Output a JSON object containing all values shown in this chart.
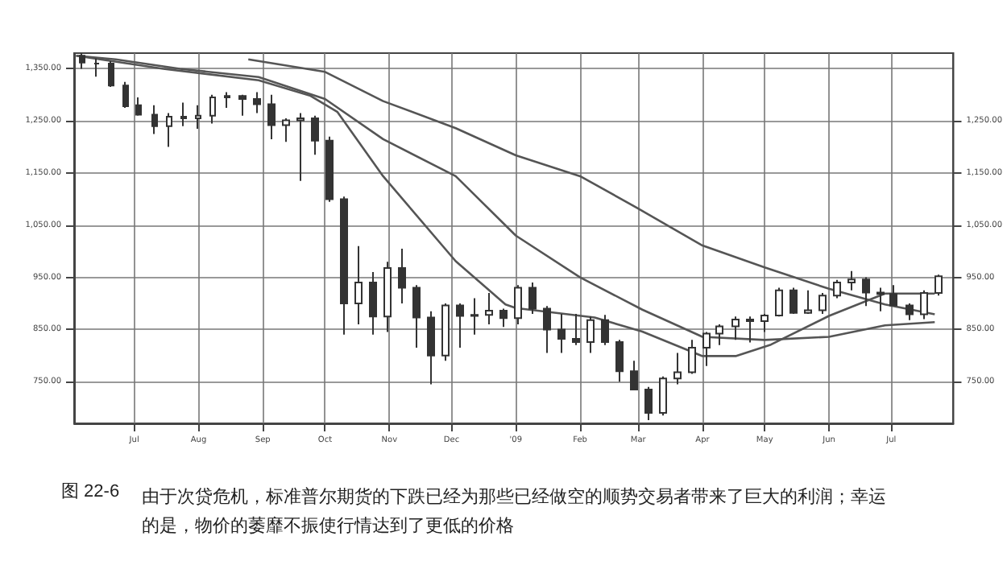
{
  "chart_data": {
    "type": "candlestick",
    "color": "#333333",
    "annotations": [
      "图 22-6",
      "由于次贷危机，标准普尔期货的下跌已经为那些已经做空的顺势交易者带来了巨大的利润；幸运的是，物价的萎靡不振使行情达到了更低的价格"
    ],
    "x": [
      "2008-06-06",
      "2008-06-13",
      "2008-06-20",
      "2008-06-27",
      "2008-07-03",
      "2008-07-11",
      "2008-07-18",
      "2008-07-25",
      "2008-08-01",
      "2008-08-08",
      "2008-08-15",
      "2008-08-22",
      "2008-08-29",
      "2008-09-05",
      "2008-09-12",
      "2008-09-19",
      "2008-09-26",
      "2008-10-03",
      "2008-10-10",
      "2008-10-17",
      "2008-10-24",
      "2008-10-31",
      "2008-11-07",
      "2008-11-14",
      "2008-11-21",
      "2008-11-28",
      "2008-12-05",
      "2008-12-12",
      "2008-12-19",
      "2008-12-26",
      "2009-01-02",
      "2009-01-09",
      "2009-01-16",
      "2009-01-23",
      "2009-01-30",
      "2009-02-06",
      "2009-02-13",
      "2009-02-20",
      "2009-02-27",
      "2009-03-06",
      "2009-03-13",
      "2009-03-20",
      "2009-03-27",
      "2009-04-03",
      "2009-04-09",
      "2009-04-17",
      "2009-04-24",
      "2009-05-01",
      "2009-05-08",
      "2009-05-15",
      "2009-05-22",
      "2009-05-29",
      "2009-06-05",
      "2009-06-12",
      "2009-06-19",
      "2009-06-26",
      "2009-07-02",
      "2009-07-10",
      "2009-07-17",
      "2009-07-24"
    ],
    "ohlc": [
      [
        1375,
        1380,
        1350,
        1362
      ],
      [
        1360,
        1370,
        1335,
        1360
      ],
      [
        1360,
        1365,
        1315,
        1318
      ],
      [
        1318,
        1325,
        1275,
        1278
      ],
      [
        1280,
        1295,
        1260,
        1262
      ],
      [
        1262,
        1280,
        1225,
        1240
      ],
      [
        1240,
        1265,
        1200,
        1258
      ],
      [
        1258,
        1285,
        1240,
        1255
      ],
      [
        1255,
        1280,
        1235,
        1260
      ],
      [
        1260,
        1300,
        1245,
        1295
      ],
      [
        1295,
        1305,
        1275,
        1298
      ],
      [
        1298,
        1300,
        1260,
        1292
      ],
      [
        1292,
        1305,
        1265,
        1282
      ],
      [
        1282,
        1300,
        1215,
        1242
      ],
      [
        1242,
        1255,
        1210,
        1251
      ],
      [
        1251,
        1265,
        1135,
        1255
      ],
      [
        1255,
        1260,
        1185,
        1212
      ],
      [
        1212,
        1220,
        1095,
        1100
      ],
      [
        1100,
        1105,
        840,
        900
      ],
      [
        900,
        1010,
        860,
        940
      ],
      [
        940,
        960,
        840,
        875
      ],
      [
        875,
        980,
        845,
        968
      ],
      [
        968,
        1005,
        900,
        930
      ],
      [
        930,
        935,
        815,
        873
      ],
      [
        873,
        885,
        745,
        800
      ],
      [
        800,
        900,
        790,
        896
      ],
      [
        896,
        900,
        815,
        876
      ],
      [
        876,
        910,
        840,
        878
      ],
      [
        878,
        920,
        860,
        886
      ],
      [
        886,
        890,
        855,
        872
      ],
      [
        872,
        935,
        860,
        930
      ],
      [
        930,
        940,
        880,
        890
      ],
      [
        890,
        895,
        805,
        850
      ],
      [
        850,
        880,
        805,
        832
      ],
      [
        832,
        880,
        820,
        826
      ],
      [
        826,
        875,
        805,
        868
      ],
      [
        868,
        878,
        820,
        826
      ],
      [
        826,
        830,
        750,
        770
      ],
      [
        770,
        790,
        735,
        735
      ],
      [
        735,
        740,
        676,
        690
      ],
      [
        690,
        760,
        685,
        756
      ],
      [
        756,
        805,
        745,
        768
      ],
      [
        768,
        830,
        765,
        815
      ],
      [
        815,
        845,
        780,
        842
      ],
      [
        842,
        860,
        820,
        856
      ],
      [
        856,
        875,
        830,
        869
      ],
      [
        869,
        875,
        825,
        866
      ],
      [
        866,
        880,
        845,
        877
      ],
      [
        877,
        930,
        875,
        925
      ],
      [
        925,
        930,
        880,
        882
      ],
      [
        882,
        925,
        880,
        887
      ],
      [
        887,
        920,
        880,
        915
      ],
      [
        915,
        945,
        910,
        940
      ],
      [
        940,
        962,
        925,
        946
      ],
      [
        946,
        950,
        895,
        921
      ],
      [
        921,
        930,
        885,
        918
      ],
      [
        918,
        935,
        895,
        896
      ],
      [
        896,
        900,
        868,
        879
      ],
      [
        879,
        925,
        870,
        920
      ],
      [
        920,
        955,
        915,
        952
      ]
    ],
    "series": [
      {
        "type": "line",
        "color": "#555555",
        "x": [
          "2008-08-25",
          "2008-10-01",
          "2008-10-29",
          "2008-12-03",
          "2009-01-01",
          "2009-02-01",
          "2009-03-01",
          "2009-04-01",
          "2009-05-01",
          "2009-06-01",
          "2009-06-28",
          "2009-07-22"
        ],
        "values": [
          1368,
          1344,
          1288,
          1236,
          1184,
          1144,
          1082,
          1011,
          969,
          928,
          898,
          879
        ]
      },
      {
        "type": "line",
        "color": "#555555",
        "x": [
          "2008-06-03",
          "2008-06-22",
          "2008-07-23",
          "2008-08-30",
          "2008-10-01",
          "2008-10-29",
          "2008-12-03",
          "2009-01-01",
          "2009-02-01",
          "2009-03-03",
          "2009-04-01",
          "2009-05-01",
          "2009-06-01",
          "2009-06-28",
          "2009-07-22"
        ],
        "values": [
          1375,
          1368,
          1350,
          1334,
          1292,
          1215,
          1144,
          1030,
          950,
          888,
          836,
          830,
          836,
          858,
          864
        ]
      },
      {
        "type": "line",
        "color": "#555555",
        "x": [
          "2008-06-03",
          "2008-07-15",
          "2008-08-30",
          "2008-09-24",
          "2008-10-07",
          "2008-10-29",
          "2008-12-03",
          "2008-12-27",
          "2009-01-01",
          "2009-02-08",
          "2009-03-03",
          "2009-04-01",
          "2009-04-17",
          "2009-05-04",
          "2009-06-01",
          "2009-06-28",
          "2009-07-22"
        ],
        "values": [
          1375,
          1350,
          1328,
          1298,
          1267,
          1144,
          981,
          898,
          891,
          873,
          846,
          799,
          799,
          821,
          876,
          919,
          919
        ]
      }
    ],
    "marker": "none",
    "grid": true,
    "xlim": [
      "2008-06-02",
      "2009-07-31"
    ],
    "xticks": [
      {
        "value": "2008-07-01",
        "label": "Jul"
      },
      {
        "value": "2008-08-01",
        "label": "Aug"
      },
      {
        "value": "2008-09-01",
        "label": "Sep"
      },
      {
        "value": "2008-10-01",
        "label": "Oct"
      },
      {
        "value": "2008-11-01",
        "label": "Nov"
      },
      {
        "value": "2008-12-01",
        "label": "Dec"
      },
      {
        "value": "2009-01-01",
        "label": "'09"
      },
      {
        "value": "2009-02-01",
        "label": "Feb"
      },
      {
        "value": "2009-03-01",
        "label": "Mar"
      },
      {
        "value": "2009-04-01",
        "label": "Apr"
      },
      {
        "value": "2009-05-01",
        "label": "May"
      },
      {
        "value": "2009-06-01",
        "label": "Jun"
      },
      {
        "value": "2009-07-01",
        "label": "Jul"
      }
    ],
    "ylim": [
      670,
      1380
    ],
    "yticks": [
      {
        "value": 750,
        "label": "750.00"
      },
      {
        "value": 850,
        "label": "850.00"
      },
      {
        "value": 950,
        "label": "950.00"
      },
      {
        "value": 1050,
        "label": "1,050.00"
      },
      {
        "value": 1150,
        "label": "1,150.00"
      },
      {
        "value": 1250,
        "label": "1,250.00"
      },
      {
        "value": 1350,
        "label": "1,350.00"
      }
    ],
    "y2lim": [
      670,
      1380
    ],
    "y2ticks": [
      {
        "value": 750,
        "label": "750.00"
      },
      {
        "value": 850,
        "label": "850.00"
      },
      {
        "value": 950,
        "label": "950.00"
      },
      {
        "value": 1050,
        "label": "1,050.00"
      },
      {
        "value": 1150,
        "label": "1,150.00"
      },
      {
        "value": 1250,
        "label": "1,250.00"
      }
    ]
  }
}
